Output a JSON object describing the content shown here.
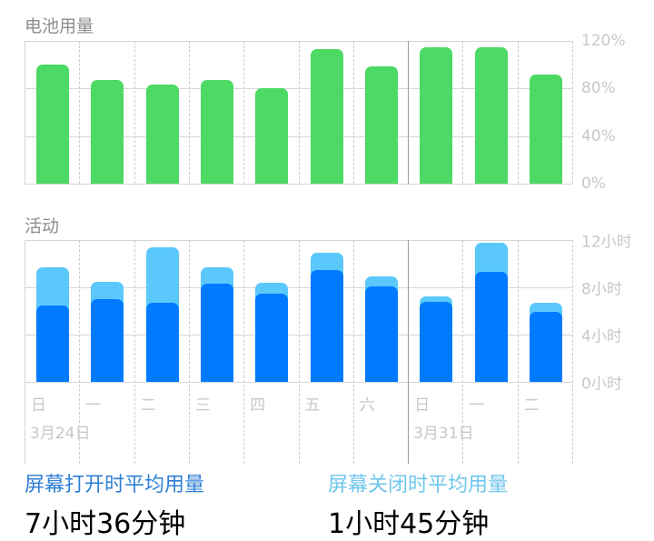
{
  "battery": {
    "title": "电池用量",
    "y_ticks": [
      "120%",
      "80%",
      "40%",
      "0%"
    ],
    "color": "#4cd964"
  },
  "activity": {
    "title": "活动",
    "y_ticks": [
      "12小时",
      "8小时",
      "4小时",
      "0小时"
    ],
    "screen_on_color": "#007aff",
    "screen_off_color": "#5ac8fa"
  },
  "x_axis": {
    "day_labels": [
      "日",
      "一",
      "二",
      "三",
      "四",
      "五",
      "六",
      "日",
      "一",
      "二"
    ],
    "week_labels": [
      "3月24日",
      "3月31日"
    ]
  },
  "legend": {
    "screen_on": {
      "label": "屏幕打开时平均用量",
      "value": "7小时36分钟",
      "color": "#2f7fd6"
    },
    "screen_off": {
      "label": "屏幕关闭时平均用量",
      "value": "1小时45分钟",
      "color": "#6fc6ec"
    }
  },
  "chart_data": [
    {
      "type": "bar",
      "title": "电池用量",
      "categories": [
        "日",
        "一",
        "二",
        "三",
        "四",
        "五",
        "六",
        "日",
        "一",
        "二"
      ],
      "values": [
        100,
        87,
        83,
        87,
        80,
        113,
        99,
        115,
        115,
        92
      ],
      "ylabel": "%",
      "ylim": [
        0,
        120
      ],
      "y_ticks": [
        0,
        40,
        80,
        120
      ],
      "grid": true,
      "week_groups": [
        "3月24日",
        "3月31日"
      ]
    },
    {
      "type": "bar",
      "stacked": true,
      "title": "活动",
      "categories": [
        "日",
        "一",
        "二",
        "三",
        "四",
        "五",
        "六",
        "日",
        "一",
        "二"
      ],
      "series": [
        {
          "name": "屏幕打开",
          "values": [
            6.5,
            7.0,
            6.7,
            8.3,
            7.5,
            9.5,
            8.1,
            6.8,
            9.3,
            5.9
          ]
        },
        {
          "name": "屏幕关闭",
          "values": [
            3.2,
            1.5,
            4.7,
            1.4,
            0.9,
            1.4,
            0.8,
            0.4,
            2.5,
            0.8
          ]
        }
      ],
      "ylabel": "小时",
      "ylim": [
        0,
        12
      ],
      "y_ticks": [
        0,
        4,
        8,
        12
      ],
      "grid": true,
      "week_groups": [
        "3月24日",
        "3月31日"
      ]
    }
  ]
}
